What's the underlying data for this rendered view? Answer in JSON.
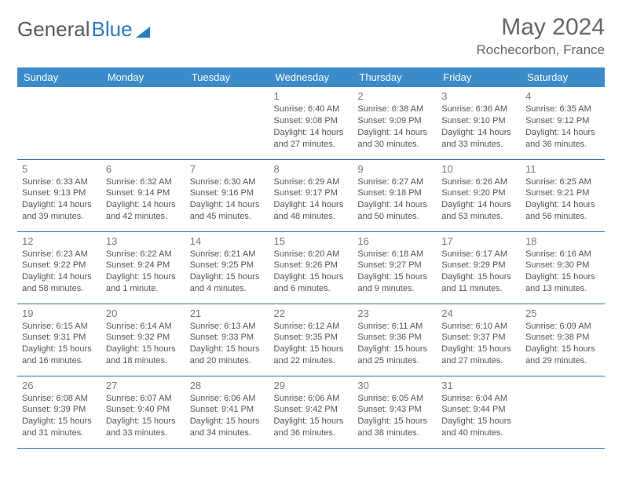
{
  "brand": {
    "part1": "General",
    "part2": "Blue"
  },
  "title": "May 2024",
  "location": "Rochecorbon, France",
  "colors": {
    "header_bg": "#3b8bc9",
    "header_text": "#ffffff",
    "cell_border": "#2f6fa6",
    "body_text": "#555555",
    "title_text": "#666666",
    "brand_gray": "#5a5a5a",
    "brand_blue": "#2b7bbf",
    "background": "#ffffff"
  },
  "typography": {
    "title_fontsize": 30,
    "location_fontsize": 17,
    "dayheader_fontsize": 13,
    "daynum_fontsize": 13,
    "info_fontsize": 11
  },
  "layout": {
    "columns": 7,
    "rows": 5
  },
  "day_headers": [
    "Sunday",
    "Monday",
    "Tuesday",
    "Wednesday",
    "Thursday",
    "Friday",
    "Saturday"
  ],
  "weeks": [
    [
      {
        "n": "",
        "sr": "",
        "ss": "",
        "dl": ""
      },
      {
        "n": "",
        "sr": "",
        "ss": "",
        "dl": ""
      },
      {
        "n": "",
        "sr": "",
        "ss": "",
        "dl": ""
      },
      {
        "n": "1",
        "sr": "Sunrise: 6:40 AM",
        "ss": "Sunset: 9:08 PM",
        "dl": "Daylight: 14 hours and 27 minutes."
      },
      {
        "n": "2",
        "sr": "Sunrise: 6:38 AM",
        "ss": "Sunset: 9:09 PM",
        "dl": "Daylight: 14 hours and 30 minutes."
      },
      {
        "n": "3",
        "sr": "Sunrise: 6:36 AM",
        "ss": "Sunset: 9:10 PM",
        "dl": "Daylight: 14 hours and 33 minutes."
      },
      {
        "n": "4",
        "sr": "Sunrise: 6:35 AM",
        "ss": "Sunset: 9:12 PM",
        "dl": "Daylight: 14 hours and 36 minutes."
      }
    ],
    [
      {
        "n": "5",
        "sr": "Sunrise: 6:33 AM",
        "ss": "Sunset: 9:13 PM",
        "dl": "Daylight: 14 hours and 39 minutes."
      },
      {
        "n": "6",
        "sr": "Sunrise: 6:32 AM",
        "ss": "Sunset: 9:14 PM",
        "dl": "Daylight: 14 hours and 42 minutes."
      },
      {
        "n": "7",
        "sr": "Sunrise: 6:30 AM",
        "ss": "Sunset: 9:16 PM",
        "dl": "Daylight: 14 hours and 45 minutes."
      },
      {
        "n": "8",
        "sr": "Sunrise: 6:29 AM",
        "ss": "Sunset: 9:17 PM",
        "dl": "Daylight: 14 hours and 48 minutes."
      },
      {
        "n": "9",
        "sr": "Sunrise: 6:27 AM",
        "ss": "Sunset: 9:18 PM",
        "dl": "Daylight: 14 hours and 50 minutes."
      },
      {
        "n": "10",
        "sr": "Sunrise: 6:26 AM",
        "ss": "Sunset: 9:20 PM",
        "dl": "Daylight: 14 hours and 53 minutes."
      },
      {
        "n": "11",
        "sr": "Sunrise: 6:25 AM",
        "ss": "Sunset: 9:21 PM",
        "dl": "Daylight: 14 hours and 56 minutes."
      }
    ],
    [
      {
        "n": "12",
        "sr": "Sunrise: 6:23 AM",
        "ss": "Sunset: 9:22 PM",
        "dl": "Daylight: 14 hours and 58 minutes."
      },
      {
        "n": "13",
        "sr": "Sunrise: 6:22 AM",
        "ss": "Sunset: 9:24 PM",
        "dl": "Daylight: 15 hours and 1 minute."
      },
      {
        "n": "14",
        "sr": "Sunrise: 6:21 AM",
        "ss": "Sunset: 9:25 PM",
        "dl": "Daylight: 15 hours and 4 minutes."
      },
      {
        "n": "15",
        "sr": "Sunrise: 6:20 AM",
        "ss": "Sunset: 9:26 PM",
        "dl": "Daylight: 15 hours and 6 minutes."
      },
      {
        "n": "16",
        "sr": "Sunrise: 6:18 AM",
        "ss": "Sunset: 9:27 PM",
        "dl": "Daylight: 15 hours and 9 minutes."
      },
      {
        "n": "17",
        "sr": "Sunrise: 6:17 AM",
        "ss": "Sunset: 9:29 PM",
        "dl": "Daylight: 15 hours and 11 minutes."
      },
      {
        "n": "18",
        "sr": "Sunrise: 6:16 AM",
        "ss": "Sunset: 9:30 PM",
        "dl": "Daylight: 15 hours and 13 minutes."
      }
    ],
    [
      {
        "n": "19",
        "sr": "Sunrise: 6:15 AM",
        "ss": "Sunset: 9:31 PM",
        "dl": "Daylight: 15 hours and 16 minutes."
      },
      {
        "n": "20",
        "sr": "Sunrise: 6:14 AM",
        "ss": "Sunset: 9:32 PM",
        "dl": "Daylight: 15 hours and 18 minutes."
      },
      {
        "n": "21",
        "sr": "Sunrise: 6:13 AM",
        "ss": "Sunset: 9:33 PM",
        "dl": "Daylight: 15 hours and 20 minutes."
      },
      {
        "n": "22",
        "sr": "Sunrise: 6:12 AM",
        "ss": "Sunset: 9:35 PM",
        "dl": "Daylight: 15 hours and 22 minutes."
      },
      {
        "n": "23",
        "sr": "Sunrise: 6:11 AM",
        "ss": "Sunset: 9:36 PM",
        "dl": "Daylight: 15 hours and 25 minutes."
      },
      {
        "n": "24",
        "sr": "Sunrise: 6:10 AM",
        "ss": "Sunset: 9:37 PM",
        "dl": "Daylight: 15 hours and 27 minutes."
      },
      {
        "n": "25",
        "sr": "Sunrise: 6:09 AM",
        "ss": "Sunset: 9:38 PM",
        "dl": "Daylight: 15 hours and 29 minutes."
      }
    ],
    [
      {
        "n": "26",
        "sr": "Sunrise: 6:08 AM",
        "ss": "Sunset: 9:39 PM",
        "dl": "Daylight: 15 hours and 31 minutes."
      },
      {
        "n": "27",
        "sr": "Sunrise: 6:07 AM",
        "ss": "Sunset: 9:40 PM",
        "dl": "Daylight: 15 hours and 33 minutes."
      },
      {
        "n": "28",
        "sr": "Sunrise: 6:06 AM",
        "ss": "Sunset: 9:41 PM",
        "dl": "Daylight: 15 hours and 34 minutes."
      },
      {
        "n": "29",
        "sr": "Sunrise: 6:06 AM",
        "ss": "Sunset: 9:42 PM",
        "dl": "Daylight: 15 hours and 36 minutes."
      },
      {
        "n": "30",
        "sr": "Sunrise: 6:05 AM",
        "ss": "Sunset: 9:43 PM",
        "dl": "Daylight: 15 hours and 38 minutes."
      },
      {
        "n": "31",
        "sr": "Sunrise: 6:04 AM",
        "ss": "Sunset: 9:44 PM",
        "dl": "Daylight: 15 hours and 40 minutes."
      },
      {
        "n": "",
        "sr": "",
        "ss": "",
        "dl": ""
      }
    ]
  ]
}
